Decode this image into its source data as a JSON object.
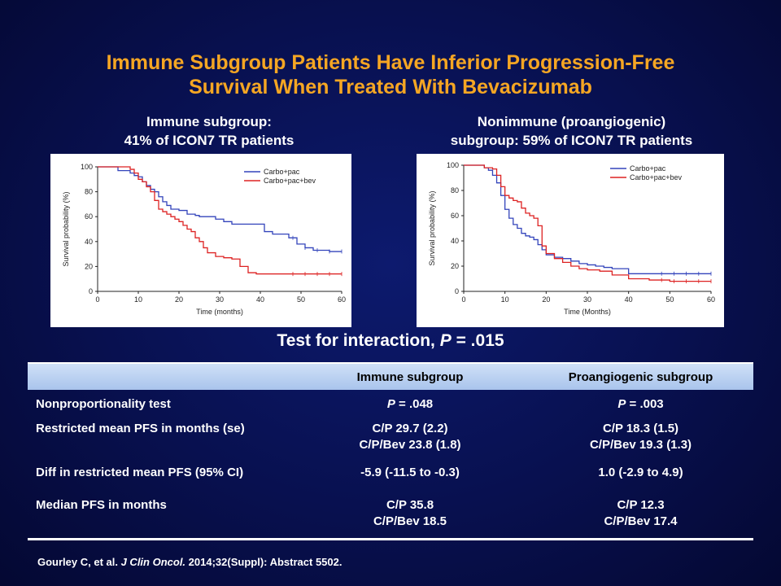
{
  "title_line1": "Immune Subgroup Patients Have Inferior Progression-Free",
  "title_line2": "Survival When Treated With Bevacizumab",
  "subtitle_left_line1": "Immune subgroup:",
  "subtitle_left_line2": "41% of ICON7 TR patients",
  "subtitle_right_line1": "Nonimmune (proangiogenic)",
  "subtitle_right_line2": "subgroup: 59% of ICON7 TR patients",
  "interaction": {
    "prefix": "Test for interaction, ",
    "p": "P",
    "value": " = .015"
  },
  "colors": {
    "carbo_pac": "#3344bb",
    "carbo_pac_bev": "#dd2222",
    "title": "#f5a623"
  },
  "table": {
    "headers": [
      "",
      "Immune subgroup",
      "Proangiogenic subgroup"
    ],
    "rows": [
      {
        "label": "Nonproportionality test",
        "immune_p": "P",
        "immune": " = .048",
        "proang_p": "P",
        "proang": " = .003"
      },
      {
        "label": "Restricted mean PFS in months (se)",
        "immune": [
          "C/P 29.7 (2.2)",
          "C/P/Bev 23.8 (1.8)"
        ],
        "proang": [
          "C/P 18.3 (1.5)",
          "C/P/Bev 19.3 (1.3)"
        ]
      },
      {
        "label": "Diff in restricted mean PFS (95% CI)",
        "immune": "-5.9 (-11.5 to -0.3)",
        "proang": "1.0 (-2.9 to 4.9)"
      },
      {
        "label": "Median PFS in months",
        "immune": [
          "C/P 35.8",
          "C/P/Bev 18.5"
        ],
        "proang": [
          "C/P 12.3",
          "C/P/Bev 17.4"
        ]
      }
    ]
  },
  "citation": {
    "authors": "Gourley C, et al. ",
    "journal": "J Clin Oncol.",
    "rest": " 2014;32(Suppl): Abstract 5502."
  },
  "chart_data": [
    {
      "type": "line",
      "xlabel": "Time (months)",
      "ylabel": "Survival probability (%)",
      "xlim": [
        0,
        60
      ],
      "ylim": [
        0,
        100
      ],
      "xticks": [
        "0",
        "10",
        "20",
        "30",
        "40",
        "50",
        "60"
      ],
      "yticks": [
        "0",
        "20",
        "40",
        "60",
        "80",
        "100"
      ],
      "legend": "top-right",
      "series": [
        {
          "name": "Carbo+pac",
          "x": [
            0,
            4,
            5,
            7,
            8,
            9,
            10,
            11,
            12,
            13,
            14,
            15,
            16,
            17,
            18,
            20,
            22,
            24,
            25,
            27,
            29,
            31,
            33,
            35,
            37,
            39,
            41,
            43,
            45,
            47,
            49,
            51,
            53,
            55,
            57,
            60
          ],
          "y": [
            100,
            100,
            97,
            97,
            95,
            93,
            92,
            88,
            85,
            82,
            80,
            76,
            72,
            69,
            66,
            65,
            62,
            61,
            60,
            60,
            58,
            56,
            54,
            54,
            54,
            54,
            48,
            46,
            46,
            43,
            38,
            35,
            33,
            33,
            32,
            32
          ]
        },
        {
          "name": "Carbo+pac+bev",
          "x": [
            0,
            3,
            6,
            8,
            9,
            10,
            11,
            12,
            13,
            14,
            15,
            16,
            17,
            18,
            19,
            20,
            21,
            22,
            23,
            24,
            25,
            26,
            27,
            29,
            31,
            33,
            35,
            37,
            39,
            43,
            60
          ],
          "y": [
            100,
            100,
            100,
            98,
            95,
            90,
            88,
            84,
            80,
            73,
            66,
            64,
            62,
            60,
            58,
            56,
            53,
            50,
            48,
            43,
            40,
            35,
            31,
            28,
            27,
            26,
            20,
            15,
            14,
            14,
            14
          ]
        }
      ]
    },
    {
      "type": "line",
      "xlabel": "Time (Months)",
      "ylabel": "Survival probability (%)",
      "xlim": [
        0,
        60
      ],
      "ylim": [
        0,
        100
      ],
      "xticks": [
        "0",
        "10",
        "20",
        "30",
        "40",
        "50",
        "60"
      ],
      "yticks": [
        "0",
        "20",
        "40",
        "60",
        "80",
        "100"
      ],
      "legend": "top-right",
      "series": [
        {
          "name": "Carbo+pac",
          "x": [
            0,
            5,
            6,
            7,
            8,
            9,
            10,
            11,
            12,
            13,
            14,
            15,
            16,
            17,
            18,
            19,
            20,
            22,
            24,
            26,
            28,
            30,
            32,
            34,
            36,
            40,
            60
          ],
          "y": [
            100,
            98,
            96,
            92,
            86,
            76,
            65,
            58,
            53,
            50,
            46,
            44,
            43,
            41,
            37,
            33,
            29,
            27,
            26,
            24,
            22,
            21,
            20,
            19,
            18,
            14,
            14
          ]
        },
        {
          "name": "Carbo+pac+bev",
          "x": [
            0,
            5,
            7,
            8,
            9,
            10,
            11,
            12,
            13,
            14,
            15,
            16,
            17,
            18,
            19,
            20,
            22,
            24,
            26,
            28,
            30,
            33,
            36,
            40,
            45,
            50,
            60
          ],
          "y": [
            100,
            98,
            97,
            92,
            83,
            76,
            74,
            72,
            71,
            66,
            62,
            60,
            58,
            52,
            36,
            30,
            26,
            23,
            20,
            18,
            17,
            16,
            13,
            10,
            9,
            8,
            8
          ]
        }
      ]
    }
  ]
}
